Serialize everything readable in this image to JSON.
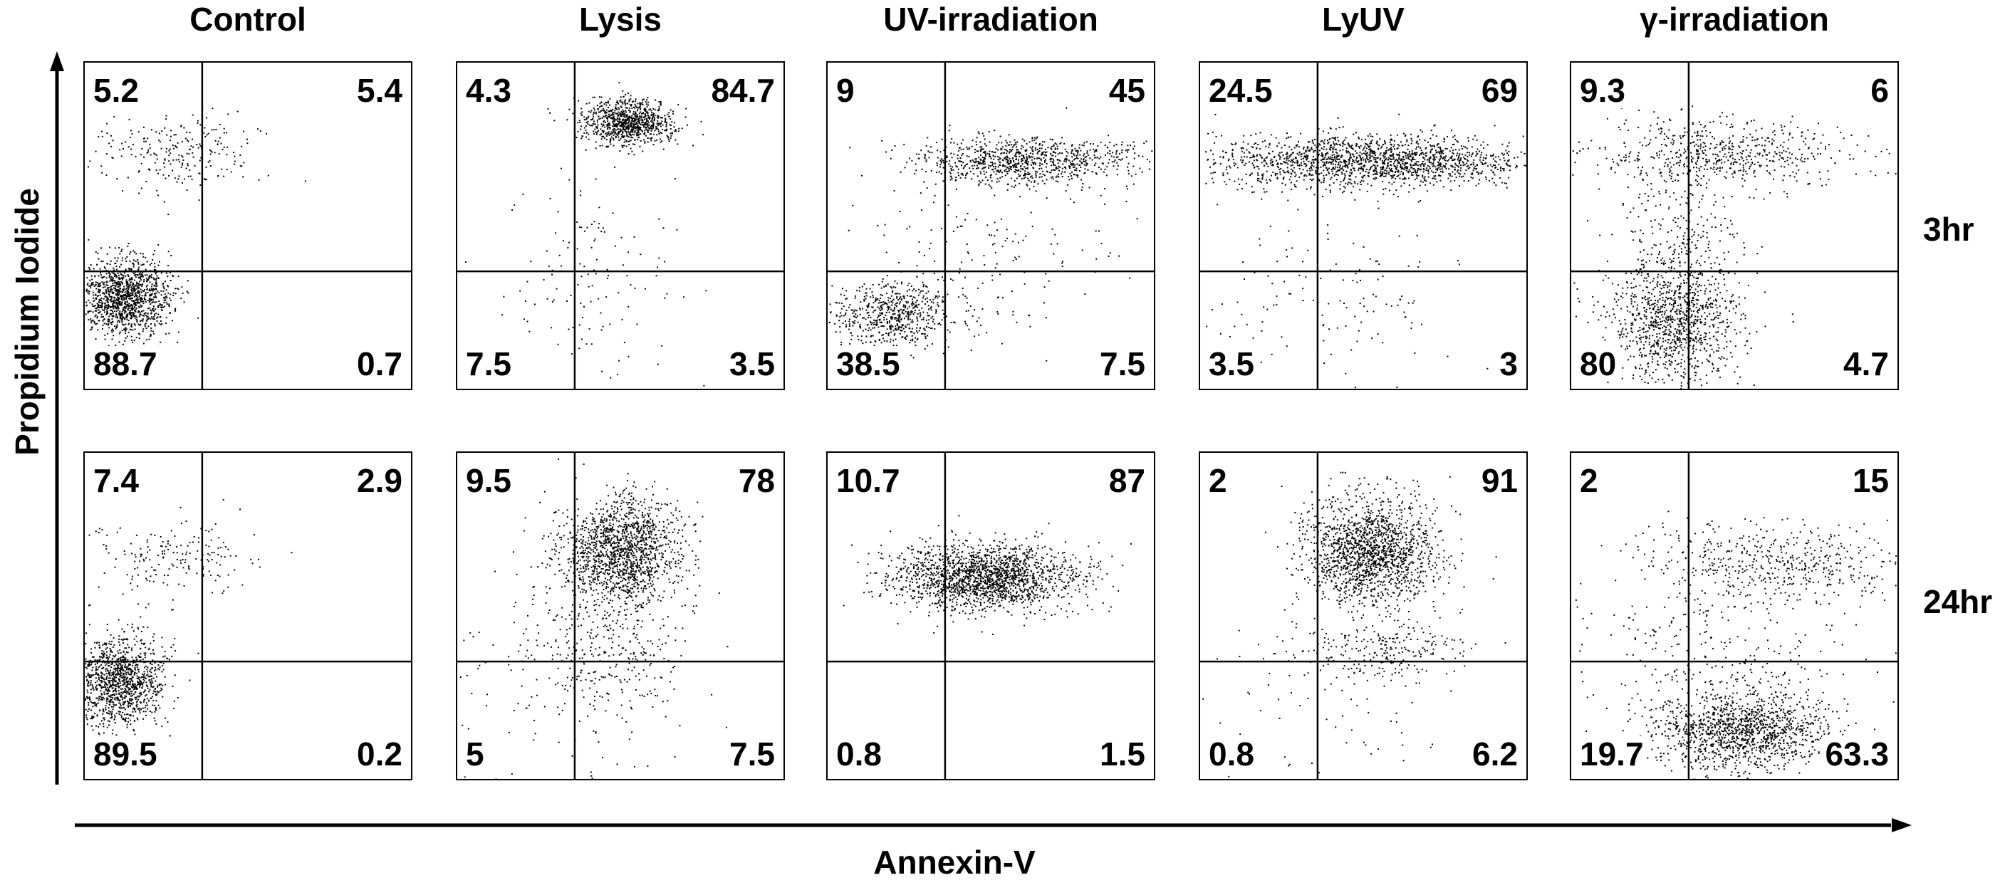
{
  "axes": {
    "x_label": "Annexin-V",
    "y_label": "Propidium Iodide"
  },
  "row_labels": [
    "3hr",
    "24hr"
  ],
  "chart_data": {
    "type": "scatter",
    "x_label": "Annexin-V",
    "y_label": "Propidium Iodide",
    "columns": [
      "Control",
      "Lysis",
      "UV-irradiation",
      "LyUV",
      "γ-irradiation"
    ],
    "rows": [
      "3hr",
      "24hr"
    ],
    "quadrant_order": [
      "upper_left",
      "upper_right",
      "lower_left",
      "lower_right"
    ],
    "panels": [
      {
        "column": "Control",
        "row": "3hr",
        "quadrants": {
          "upper_left": "5.2",
          "upper_right": "5.4",
          "lower_left": "88.7",
          "lower_right": "0.7"
        },
        "clusters": [
          {
            "cx": 0.12,
            "cy": 0.28,
            "sx": 0.07,
            "sy": 0.06,
            "n": 1300
          },
          {
            "cx": 0.28,
            "cy": 0.72,
            "sx": 0.13,
            "sy": 0.06,
            "n": 240
          }
        ]
      },
      {
        "column": "Lysis",
        "row": "3hr",
        "quadrants": {
          "upper_left": "4.3",
          "upper_right": "84.7",
          "lower_left": "7.5",
          "lower_right": "3.5"
        },
        "clusters": [
          {
            "cx": 0.52,
            "cy": 0.82,
            "sx": 0.07,
            "sy": 0.035,
            "n": 900
          },
          {
            "cx": 0.4,
            "cy": 0.35,
            "sx": 0.13,
            "sy": 0.17,
            "n": 140
          }
        ]
      },
      {
        "column": "UV-irradiation",
        "row": "3hr",
        "quadrants": {
          "upper_left": "9",
          "upper_right": "45",
          "lower_left": "38.5",
          "lower_right": "7.5"
        },
        "clusters": [
          {
            "cx": 0.6,
            "cy": 0.7,
            "sx": 0.17,
            "sy": 0.035,
            "n": 900
          },
          {
            "cx": 0.2,
            "cy": 0.23,
            "sx": 0.09,
            "sy": 0.05,
            "n": 600
          },
          {
            "cx": 0.45,
            "cy": 0.4,
            "sx": 0.2,
            "sy": 0.14,
            "n": 180
          }
        ]
      },
      {
        "column": "LyUV",
        "row": "3hr",
        "quadrants": {
          "upper_left": "24.5",
          "upper_right": "69",
          "lower_left": "3.5",
          "lower_right": "3"
        },
        "clusters": [
          {
            "cx": 0.52,
            "cy": 0.7,
            "sx": 0.24,
            "sy": 0.04,
            "n": 1700
          },
          {
            "cx": 0.4,
            "cy": 0.28,
            "sx": 0.2,
            "sy": 0.15,
            "n": 140
          }
        ]
      },
      {
        "column": "γ-irradiation",
        "row": "3hr",
        "quadrants": {
          "upper_left": "9.3",
          "upper_right": "6",
          "lower_left": "80",
          "lower_right": "4.7"
        },
        "clusters": [
          {
            "cx": 0.45,
            "cy": 0.72,
            "sx": 0.2,
            "sy": 0.05,
            "n": 600
          },
          {
            "cx": 0.32,
            "cy": 0.2,
            "sx": 0.1,
            "sy": 0.09,
            "n": 1000
          },
          {
            "cx": 0.32,
            "cy": 0.45,
            "sx": 0.1,
            "sy": 0.13,
            "n": 300
          }
        ]
      },
      {
        "column": "Control",
        "row": "24hr",
        "quadrants": {
          "upper_left": "7.4",
          "upper_right": "2.9",
          "lower_left": "89.5",
          "lower_right": "0.2"
        },
        "clusters": [
          {
            "cx": 0.1,
            "cy": 0.3,
            "sx": 0.07,
            "sy": 0.07,
            "n": 1200
          },
          {
            "cx": 0.28,
            "cy": 0.68,
            "sx": 0.14,
            "sy": 0.06,
            "n": 180
          }
        ]
      },
      {
        "column": "Lysis",
        "row": "24hr",
        "quadrants": {
          "upper_left": "9.5",
          "upper_right": "78",
          "lower_left": "5",
          "lower_right": "7.5"
        },
        "clusters": [
          {
            "cx": 0.5,
            "cy": 0.7,
            "sx": 0.09,
            "sy": 0.08,
            "n": 1500
          },
          {
            "cx": 0.45,
            "cy": 0.4,
            "sx": 0.12,
            "sy": 0.12,
            "n": 300
          },
          {
            "cx": 0.3,
            "cy": 0.3,
            "sx": 0.2,
            "sy": 0.2,
            "n": 150
          }
        ]
      },
      {
        "column": "UV-irradiation",
        "row": "24hr",
        "quadrants": {
          "upper_left": "10.7",
          "upper_right": "87",
          "lower_left": "0.8",
          "lower_right": "1.5"
        },
        "clusters": [
          {
            "cx": 0.48,
            "cy": 0.62,
            "sx": 0.14,
            "sy": 0.05,
            "n": 1800
          }
        ]
      },
      {
        "column": "LyUV",
        "row": "24hr",
        "quadrants": {
          "upper_left": "2",
          "upper_right": "91",
          "lower_left": "0.8",
          "lower_right": "6.2"
        },
        "clusters": [
          {
            "cx": 0.52,
            "cy": 0.7,
            "sx": 0.1,
            "sy": 0.08,
            "n": 1600
          },
          {
            "cx": 0.55,
            "cy": 0.4,
            "sx": 0.13,
            "sy": 0.05,
            "n": 250
          },
          {
            "cx": 0.4,
            "cy": 0.3,
            "sx": 0.2,
            "sy": 0.2,
            "n": 90
          }
        ]
      },
      {
        "column": "γ-irradiation",
        "row": "24hr",
        "quadrants": {
          "upper_left": "2",
          "upper_right": "15",
          "lower_left": "19.7",
          "lower_right": "63.3"
        },
        "clusters": [
          {
            "cx": 0.52,
            "cy": 0.15,
            "sx": 0.13,
            "sy": 0.06,
            "n": 1300
          },
          {
            "cx": 0.65,
            "cy": 0.66,
            "sx": 0.2,
            "sy": 0.06,
            "n": 500
          },
          {
            "cx": 0.45,
            "cy": 0.4,
            "sx": 0.2,
            "sy": 0.14,
            "n": 300
          }
        ]
      }
    ]
  }
}
